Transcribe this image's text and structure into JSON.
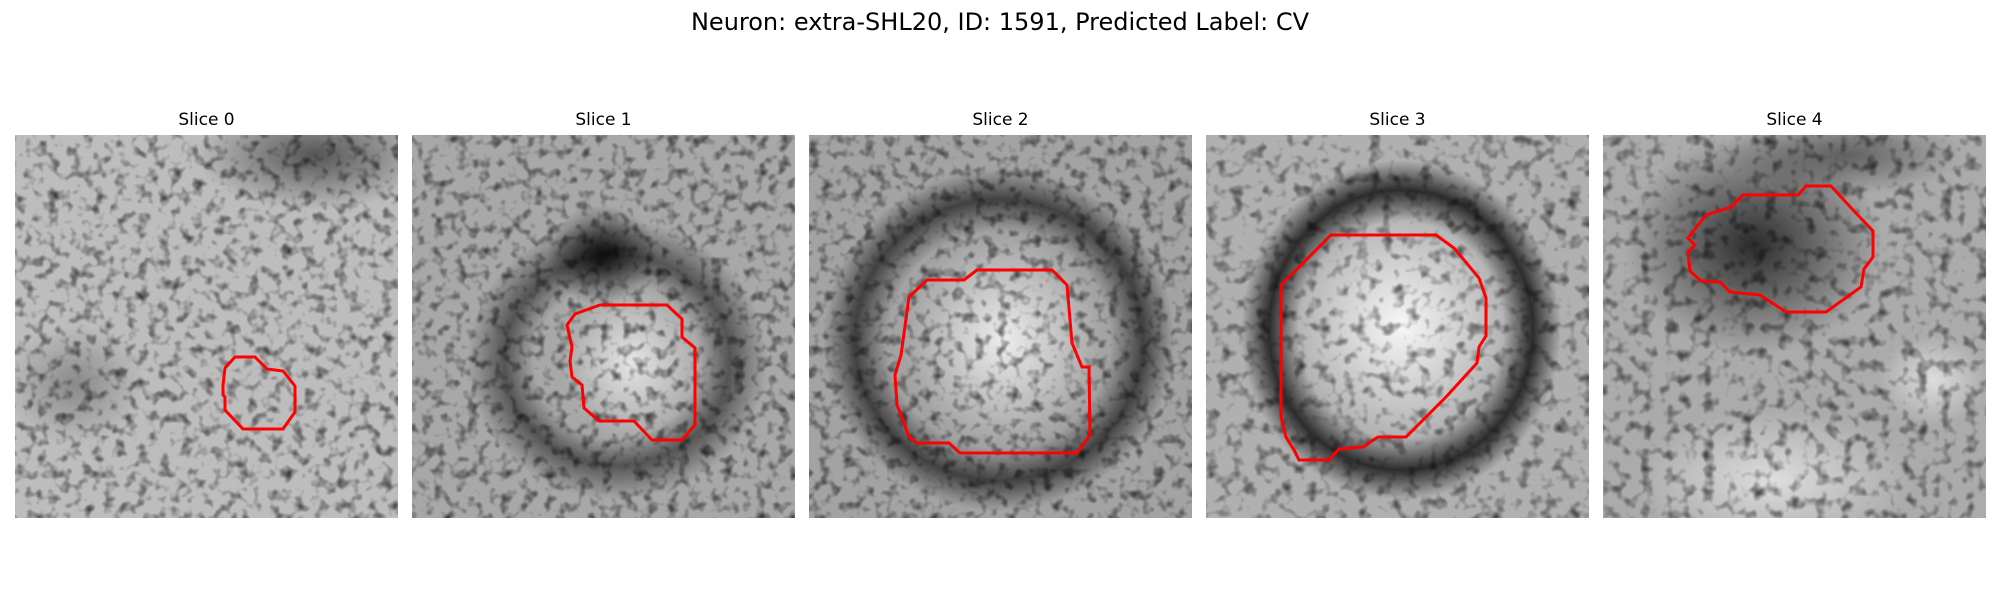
{
  "figure": {
    "title": "Neuron: extra-SHL20, ID: 1591, Predicted Label: CV",
    "contour_color": "#ff0000"
  },
  "panels": [
    {
      "title": "Slice 0"
    },
    {
      "title": "Slice 1"
    },
    {
      "title": "Slice 2"
    },
    {
      "title": "Slice 3"
    },
    {
      "title": "Slice 4"
    }
  ]
}
